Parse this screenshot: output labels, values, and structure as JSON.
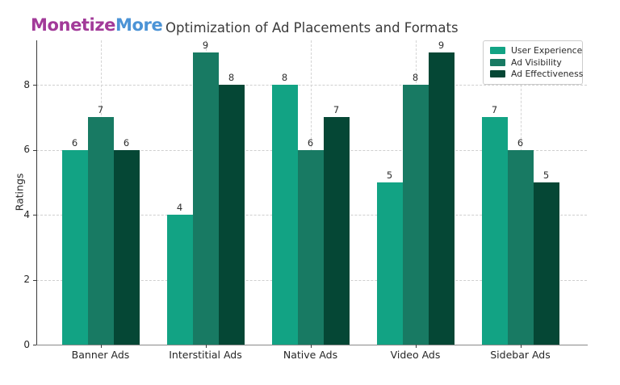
{
  "logo": {
    "text_primary": "Monetize",
    "text_secondary": "More",
    "color_primary": "#a23a99",
    "color_secondary": "#4b93d6"
  },
  "chart_data": {
    "type": "bar",
    "title": "Optimization of Ad Placements and Formats",
    "categories": [
      "Banner Ads",
      "Interstitial Ads",
      "Native Ads",
      "Video Ads",
      "Sidebar Ads"
    ],
    "series": [
      {
        "name": "User Experience",
        "color": "#12a384",
        "values": [
          6,
          4,
          8,
          5,
          7
        ]
      },
      {
        "name": "Ad Visibility",
        "color": "#187a63",
        "values": [
          7,
          9,
          6,
          8,
          6
        ]
      },
      {
        "name": "Ad Effectiveness",
        "color": "#054735",
        "values": [
          6,
          8,
          7,
          9,
          5
        ]
      }
    ],
    "xlabel": "",
    "ylabel": "Ratings",
    "yticks": [
      0,
      2,
      4,
      6,
      8
    ],
    "ylim": [
      0,
      9.4
    ],
    "grid": "dashed, horizontal and vertical",
    "legend_position": "upper right",
    "value_labels": true
  },
  "colors": {
    "background": "#ffffff",
    "title_text": "#3b3b3b",
    "axis_text": "#262626",
    "grid": "#cfcfcf",
    "spine_left": "#3a3a3a",
    "spine_bottom": "#8a8a8a",
    "legend_border": "#cccccc"
  }
}
